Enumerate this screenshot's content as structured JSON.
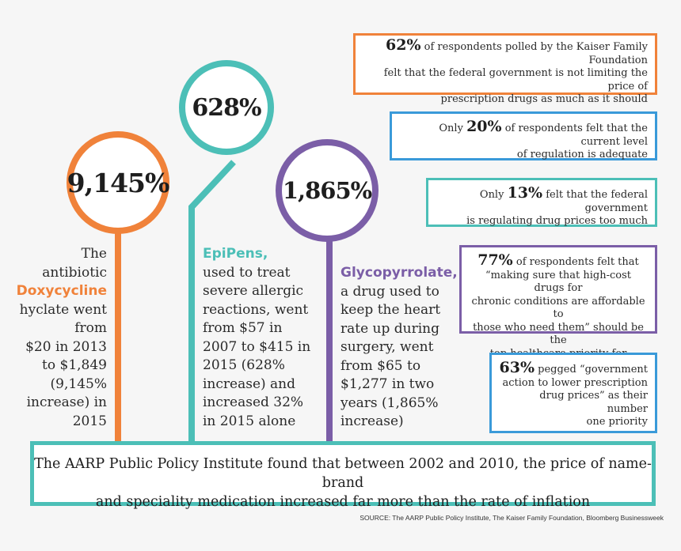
{
  "colors": {
    "orange": "#f0823a",
    "teal": "#4cbfb7",
    "purple": "#7b5ea7",
    "blue": "#3a9ad9"
  },
  "stats": [
    {
      "value": "9,145%",
      "color": "#f0823a",
      "lines_before": [
        "The",
        "antibiotic"
      ],
      "drug": "Doxycycline",
      "lines_after": [
        "hyclate went",
        "from",
        "$20 in 2013",
        "to $1,849",
        "(9,145%",
        "increase) in",
        "2015"
      ]
    },
    {
      "value": "628%",
      "color": "#4cbfb7",
      "drug": "EpiPens,",
      "lines_after": [
        "used to treat",
        "severe allergic",
        "reactions, went",
        "from $57 in",
        "2007 to $415 in",
        "2015 (628%",
        "increase) and",
        "increased 32%",
        "in 2015 alone"
      ]
    },
    {
      "value": "1,865%",
      "color": "#7b5ea7",
      "drug": "Glycopyrrolate,",
      "lines_after": [
        "a drug used to",
        "keep the heart",
        "rate up during",
        "surgery, went",
        "from $65 to",
        "$1,277 in two",
        "years (1,865%",
        "increase)"
      ]
    }
  ],
  "survey": [
    {
      "prefix": "",
      "pct": "62%",
      "line1_rest": " of respondents polled by the Kaiser Family Foundation",
      "lines": [
        "felt that the federal government is not limiting the price of",
        "prescription drugs as much as it should"
      ],
      "color": "#f0823a"
    },
    {
      "prefix": "Only ",
      "pct": "20%",
      "line1_rest": " of respondents felt that the current level",
      "lines": [
        "of regulation is adequate"
      ],
      "color": "#3a9ad9"
    },
    {
      "prefix": "Only ",
      "pct": "13%",
      "line1_rest": " felt that the federal government",
      "lines": [
        "is regulating drug prices too much"
      ],
      "color": "#4cbfb7"
    },
    {
      "prefix": "",
      "pct": "77%",
      "line1_rest": " of respondents felt that",
      "lines": [
        "“making sure that high-cost drugs for",
        "chronic conditions are affordable to",
        "those who need them” should be the",
        "top healthcare priority for lawmakers"
      ],
      "color": "#7b5ea7"
    },
    {
      "prefix": "",
      "pct": "63%",
      "line1_rest": " pegged “government",
      "lines": [
        "action to lower prescription",
        "drug prices” as their number",
        "one priority"
      ],
      "color": "#3a9ad9"
    }
  ],
  "summary": {
    "line1": "The AARP Public Policy Institute found that between 2002 and 2010, the price of name-brand",
    "line2": "and speciality medication increased far more than the rate of inflation"
  },
  "source": "SOURCE: The AARP Public Policy Institute, The Kaiser Family Foundation, Bloomberg Businessweek"
}
